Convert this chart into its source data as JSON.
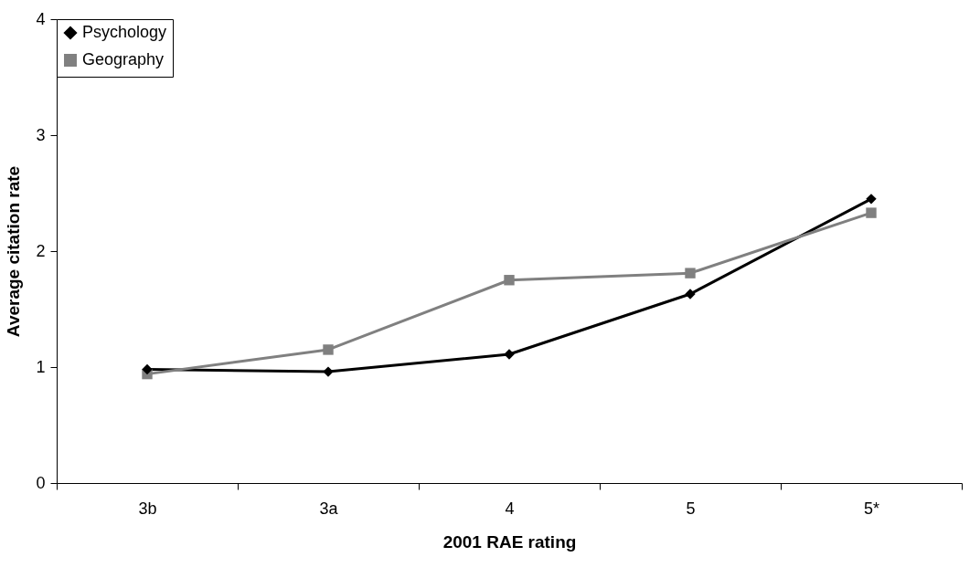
{
  "chart_data": {
    "type": "line",
    "xlabel": "2001 RAE rating",
    "ylabel": "Average citation rate",
    "categories": [
      "3b",
      "3a",
      "4",
      "5",
      "5*"
    ],
    "series": [
      {
        "name": "Psychology",
        "color": "#000000",
        "marker": "diamond",
        "values": [
          0.98,
          0.96,
          1.11,
          1.63,
          2.45
        ]
      },
      {
        "name": "Geography",
        "color": "#808080",
        "marker": "square",
        "values": [
          0.94,
          1.15,
          1.75,
          1.81,
          2.33
        ]
      }
    ],
    "ylim": [
      0,
      4
    ],
    "yticks": [
      0,
      1,
      2,
      3,
      4
    ],
    "grid": false,
    "legend": "top left",
    "line_style": "solid"
  }
}
